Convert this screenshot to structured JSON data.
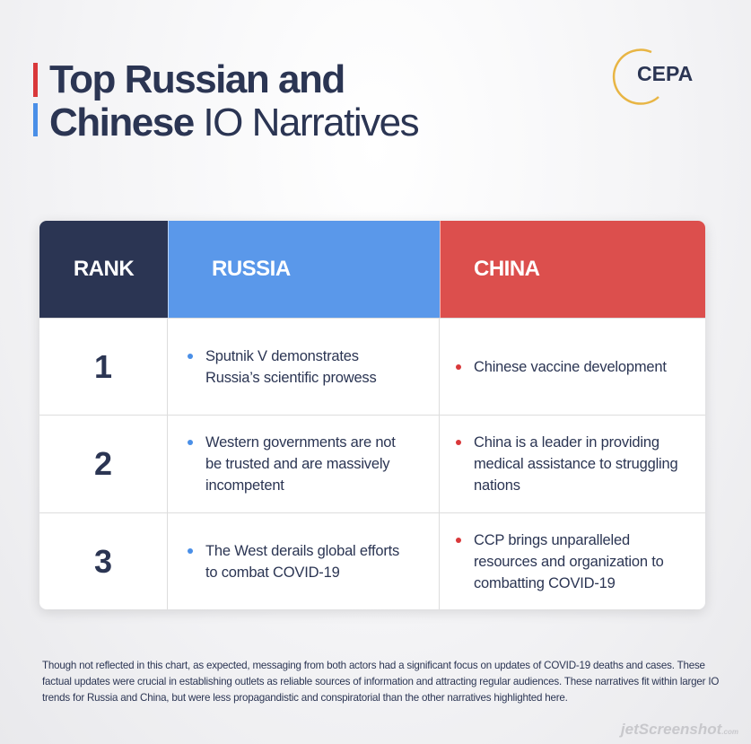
{
  "title": {
    "line1": "Top Russian and",
    "line2_bold": "Chinese",
    "line2_rest": "IO Narratives"
  },
  "logo": "CEPA",
  "table": {
    "headers": [
      "RANK",
      "RUSSIA",
      "CHINA"
    ],
    "rows": [
      [
        "1",
        "Sputnik V demonstrates Russia’s scientific prowess",
        "Chinese vaccine development"
      ],
      [
        "2",
        "Western governments are not be trusted and are massively incompetent",
        "China is a leader in providing medical assistance to struggling nations"
      ],
      [
        "3",
        "The West derails global efforts to combat COVID-19",
        "CCP brings unparalleled resources and organization to combatting COVID-19"
      ]
    ]
  },
  "footnote": "Though not reflected in this chart, as expected, messaging from both actors had a significant focus on updates of COVID-19 deaths and cases. These factual updates were crucial in establishing outlets as reliable sources of information and attracting regular audiences. These narratives fit within larger IO trends for Russia and China, but were less propagandistic and conspiratorial than the other narratives highlighted here.",
  "watermark": {
    "name": "jetScreenshot",
    "suffix": ".com"
  }
}
